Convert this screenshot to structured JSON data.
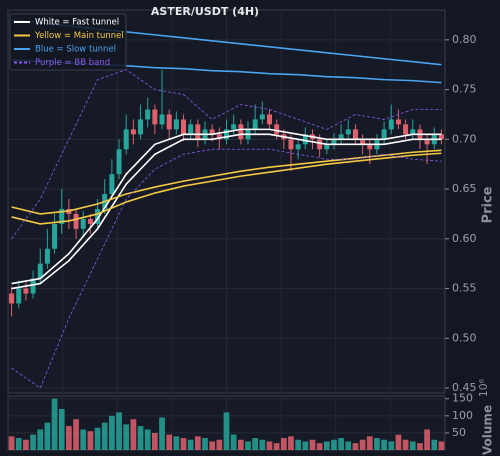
{
  "chart_data": {
    "type": "candlestick",
    "title": "ASTER/USDT (4H)",
    "ylabel": "Price",
    "volume_label": "Volume",
    "volume_offset": "10⁶",
    "up_color": "#26a69a",
    "down_color": "#e0606e",
    "ylim": [
      0.445,
      0.83
    ],
    "yticks": [
      0.45,
      {
        "value": 0.5,
        "label": "0.50"
      },
      0.55,
      {
        "value": 0.6,
        "label": "0.60"
      },
      0.65,
      {
        "value": 0.7,
        "label": "0.70"
      },
      0.75,
      {
        "value": 0.8,
        "label": "0.80"
      }
    ],
    "volume_ylim": [
      0,
      158
    ],
    "volume_yticks": [
      50,
      100,
      150
    ],
    "grid": true,
    "legend": "upper left",
    "candles": [
      [
        0.545,
        0.552,
        0.522,
        0.535
      ],
      [
        0.535,
        0.558,
        0.53,
        0.55
      ],
      [
        0.55,
        0.556,
        0.538,
        0.545
      ],
      [
        0.545,
        0.568,
        0.54,
        0.56
      ],
      [
        0.56,
        0.59,
        0.555,
        0.575
      ],
      [
        0.575,
        0.61,
        0.57,
        0.59
      ],
      [
        0.59,
        0.625,
        0.585,
        0.615
      ],
      [
        0.615,
        0.65,
        0.605,
        0.63
      ],
      [
        0.63,
        0.64,
        0.61,
        0.625
      ],
      [
        0.625,
        0.63,
        0.6,
        0.61
      ],
      [
        0.61,
        0.628,
        0.602,
        0.62
      ],
      [
        0.62,
        0.625,
        0.605,
        0.615
      ],
      [
        0.615,
        0.64,
        0.61,
        0.63
      ],
      [
        0.63,
        0.66,
        0.625,
        0.645
      ],
      [
        0.645,
        0.68,
        0.64,
        0.665
      ],
      [
        0.665,
        0.7,
        0.66,
        0.69
      ],
      [
        0.69,
        0.725,
        0.685,
        0.71
      ],
      [
        0.71,
        0.72,
        0.695,
        0.705
      ],
      [
        0.705,
        0.735,
        0.7,
        0.72
      ],
      [
        0.72,
        0.742,
        0.712,
        0.73
      ],
      [
        0.73,
        0.735,
        0.705,
        0.715
      ],
      [
        0.715,
        0.77,
        0.71,
        0.725
      ],
      [
        0.725,
        0.73,
        0.7,
        0.71
      ],
      [
        0.71,
        0.728,
        0.705,
        0.72
      ],
      [
        0.72,
        0.725,
        0.698,
        0.705
      ],
      [
        0.705,
        0.72,
        0.7,
        0.715
      ],
      [
        0.715,
        0.72,
        0.692,
        0.7
      ],
      [
        0.7,
        0.718,
        0.695,
        0.71
      ],
      [
        0.71,
        0.715,
        0.698,
        0.705
      ],
      [
        0.705,
        0.712,
        0.69,
        0.7
      ],
      [
        0.7,
        0.72,
        0.695,
        0.71
      ],
      [
        0.71,
        0.725,
        0.705,
        0.715
      ],
      [
        0.715,
        0.72,
        0.695,
        0.7
      ],
      [
        0.7,
        0.718,
        0.695,
        0.71
      ],
      [
        0.71,
        0.735,
        0.705,
        0.72
      ],
      [
        0.72,
        0.738,
        0.715,
        0.725
      ],
      [
        0.725,
        0.73,
        0.71,
        0.715
      ],
      [
        0.715,
        0.72,
        0.7,
        0.705
      ],
      [
        0.705,
        0.71,
        0.69,
        0.7
      ],
      [
        0.7,
        0.705,
        0.668,
        0.69
      ],
      [
        0.69,
        0.7,
        0.68,
        0.695
      ],
      [
        0.695,
        0.712,
        0.69,
        0.705
      ],
      [
        0.705,
        0.71,
        0.69,
        0.7
      ],
      [
        0.7,
        0.705,
        0.682,
        0.69
      ],
      [
        0.69,
        0.7,
        0.685,
        0.695
      ],
      [
        0.695,
        0.706,
        0.69,
        0.7
      ],
      [
        0.7,
        0.715,
        0.695,
        0.705
      ],
      [
        0.705,
        0.72,
        0.7,
        0.71
      ],
      [
        0.71,
        0.715,
        0.695,
        0.7
      ],
      [
        0.7,
        0.705,
        0.685,
        0.695
      ],
      [
        0.695,
        0.7,
        0.675,
        0.69
      ],
      [
        0.69,
        0.705,
        0.685,
        0.7
      ],
      [
        0.7,
        0.718,
        0.695,
        0.71
      ],
      [
        0.71,
        0.735,
        0.705,
        0.72
      ],
      [
        0.72,
        0.73,
        0.71,
        0.715
      ],
      [
        0.715,
        0.72,
        0.7,
        0.705
      ],
      [
        0.705,
        0.72,
        0.7,
        0.71
      ],
      [
        0.71,
        0.715,
        0.69,
        0.7
      ],
      [
        0.7,
        0.705,
        0.675,
        0.695
      ],
      [
        0.695,
        0.712,
        0.69,
        0.705
      ],
      [
        0.705,
        0.71,
        0.695,
        0.7
      ]
    ],
    "volume": [
      40,
      35,
      30,
      45,
      60,
      80,
      150,
      120,
      70,
      90,
      60,
      55,
      65,
      80,
      100,
      110,
      75,
      90,
      70,
      60,
      50,
      95,
      45,
      40,
      35,
      30,
      40,
      35,
      25,
      30,
      110,
      45,
      30,
      25,
      35,
      30,
      25,
      20,
      35,
      40,
      30,
      25,
      30,
      20,
      25,
      30,
      35,
      25,
      20,
      30,
      40,
      35,
      30,
      25,
      45,
      30,
      25,
      20,
      60,
      30,
      25
    ],
    "line_x": [
      0,
      4,
      8,
      12,
      16,
      20,
      24,
      28,
      32,
      36,
      40,
      44,
      48,
      52,
      56,
      60
    ],
    "tunnels": [
      {
        "name": "White = Fast tunnel",
        "color": "#ffffff",
        "dashed": false,
        "upper": [
          0.555,
          0.56,
          0.585,
          0.62,
          0.665,
          0.695,
          0.705,
          0.705,
          0.71,
          0.71,
          0.705,
          0.7,
          0.7,
          0.7,
          0.705,
          0.705
        ],
        "lower": [
          0.55,
          0.555,
          0.578,
          0.61,
          0.655,
          0.685,
          0.7,
          0.7,
          0.705,
          0.705,
          0.7,
          0.695,
          0.695,
          0.695,
          0.7,
          0.7
        ]
      },
      {
        "name": "Yellow = Main tunnel",
        "color": "#f5c842",
        "dashed": false,
        "upper": [
          0.632,
          0.625,
          0.628,
          0.635,
          0.645,
          0.652,
          0.658,
          0.663,
          0.668,
          0.672,
          0.675,
          0.678,
          0.681,
          0.684,
          0.687,
          0.689
        ],
        "lower": [
          0.622,
          0.615,
          0.618,
          0.625,
          0.637,
          0.646,
          0.653,
          0.658,
          0.663,
          0.667,
          0.671,
          0.675,
          0.678,
          0.681,
          0.684,
          0.686
        ]
      },
      {
        "name": "Blue = Slow tunnel",
        "color": "#4aa3f0",
        "dashed": false,
        "upper": [
          0.82,
          0.817,
          0.814,
          0.811,
          0.808,
          0.805,
          0.802,
          0.799,
          0.796,
          0.793,
          0.79,
          0.787,
          0.784,
          0.781,
          0.778,
          0.775
        ],
        "lower": [
          0.78,
          0.778,
          0.777,
          0.775,
          0.774,
          0.772,
          0.771,
          0.769,
          0.768,
          0.766,
          0.765,
          0.763,
          0.762,
          0.76,
          0.759,
          0.757
        ]
      },
      {
        "name": "Purple = BB band",
        "color": "#8a5cf0",
        "dashed": true,
        "upper": [
          0.6,
          0.64,
          0.7,
          0.76,
          0.77,
          0.75,
          0.745,
          0.72,
          0.735,
          0.73,
          0.72,
          0.71,
          0.725,
          0.72,
          0.73,
          0.73
        ],
        "lower": [
          0.47,
          0.45,
          0.52,
          0.58,
          0.64,
          0.67,
          0.685,
          0.69,
          0.69,
          0.69,
          0.685,
          0.68,
          0.68,
          0.685,
          0.68,
          0.678
        ]
      }
    ]
  }
}
